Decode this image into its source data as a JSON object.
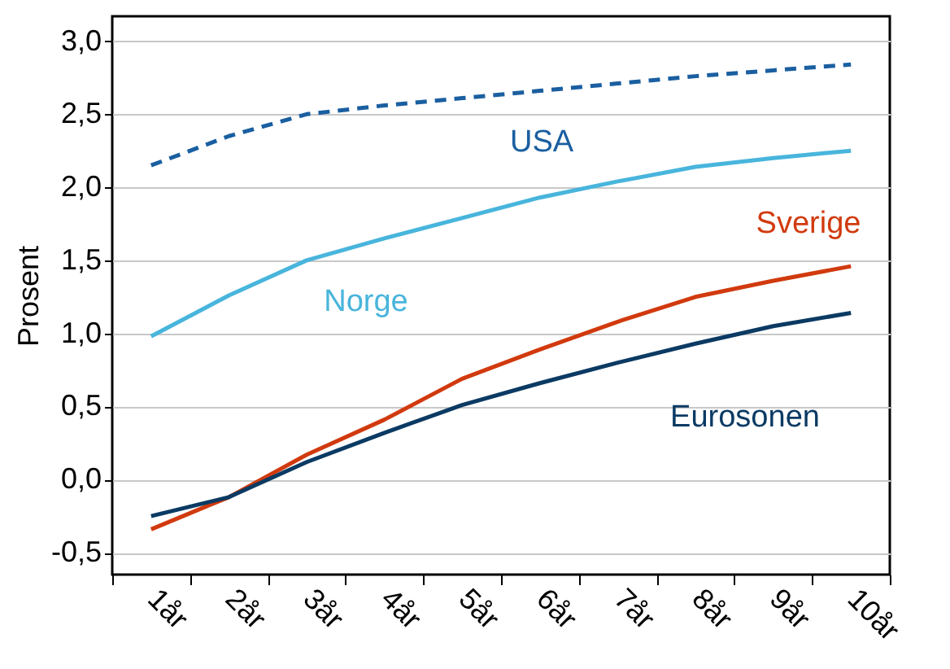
{
  "chart_data": {
    "type": "line",
    "ylabel": "Prosent",
    "categories": [
      "1år",
      "2år",
      "3år",
      "4år",
      "5år",
      "6år",
      "7år",
      "8år",
      "9år",
      "10år"
    ],
    "series": [
      {
        "name": "USA",
        "color": "#1a5fa0",
        "line_style": "dashed",
        "values": [
          2.15,
          2.35,
          2.5,
          2.56,
          2.61,
          2.66,
          2.71,
          2.76,
          2.8,
          2.84
        ]
      },
      {
        "name": "Norge",
        "color": "#48b5dc",
        "line_style": "solid",
        "values": [
          0.98,
          1.26,
          1.5,
          1.65,
          1.79,
          1.93,
          2.04,
          2.14,
          2.2,
          2.25
        ]
      },
      {
        "name": "Sverige",
        "color": "#d13a0e",
        "line_style": "solid",
        "values": [
          -0.34,
          -0.12,
          0.17,
          0.41,
          0.69,
          0.89,
          1.08,
          1.25,
          1.36,
          1.46
        ]
      },
      {
        "name": "Eurosonen",
        "color": "#0b3a63",
        "line_style": "solid",
        "values": [
          -0.25,
          -0.12,
          0.12,
          0.32,
          0.51,
          0.66,
          0.8,
          0.93,
          1.05,
          1.14
        ]
      }
    ],
    "ylim": [
      -0.65,
      3.17
    ],
    "yticks": [
      {
        "value": -0.5,
        "label": "-0,5"
      },
      {
        "value": 0,
        "label": "0,0"
      },
      {
        "value": 0.5,
        "label": "0,5"
      },
      {
        "value": 1,
        "label": "1,0"
      },
      {
        "value": 1.5,
        "label": "1,5"
      },
      {
        "value": 2,
        "label": "2,0"
      },
      {
        "value": 2.5,
        "label": "2,5"
      },
      {
        "value": 3,
        "label": "3,0"
      }
    ],
    "grid": "y"
  }
}
